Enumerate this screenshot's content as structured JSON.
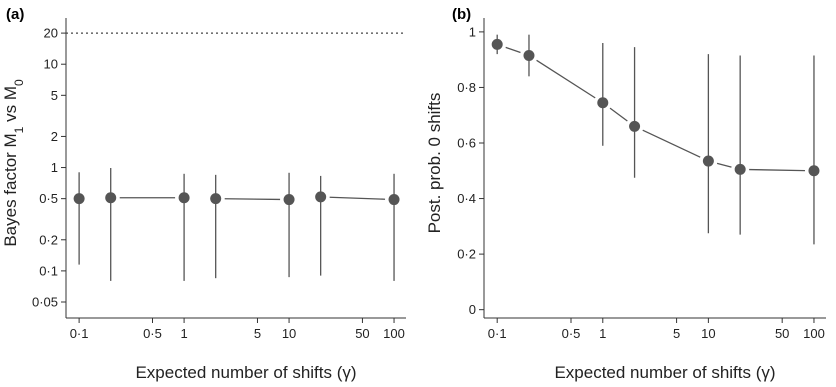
{
  "chart_data": [
    {
      "type": "scatter",
      "panel_label": "(a)",
      "xlabel": "Expected number of shifts (γ)",
      "ylabel": [
        "Bayes factor M",
        "1",
        " vs M",
        "0"
      ],
      "xscale": "log",
      "yscale": "log",
      "xlim": [
        0.075,
        130
      ],
      "ylim": [
        0.035,
        28
      ],
      "x_ticks": [
        0.1,
        0.5,
        1,
        5,
        10,
        50,
        100
      ],
      "x_tick_labels": [
        "0·1",
        "0·5",
        "1",
        "5",
        "10",
        "50",
        "100"
      ],
      "y_ticks": [
        0.05,
        0.1,
        0.2,
        0.5,
        1,
        2,
        5,
        10,
        20
      ],
      "y_tick_labels": [
        "0·05",
        "0·1",
        "0·2",
        "0·5",
        "1",
        "2",
        "5",
        "10",
        "20"
      ],
      "reference_line": 20,
      "points": [
        {
          "x": 0.1,
          "y": 0.5,
          "low": 0.115,
          "high": 0.9
        },
        {
          "x": 0.2,
          "y": 0.51,
          "low": 0.08,
          "high": 0.99
        },
        {
          "x": 1,
          "y": 0.51,
          "low": 0.08,
          "high": 0.87
        },
        {
          "x": 2,
          "y": 0.5,
          "low": 0.085,
          "high": 0.85
        },
        {
          "x": 10,
          "y": 0.49,
          "low": 0.087,
          "high": 0.89
        },
        {
          "x": 20,
          "y": 0.52,
          "low": 0.09,
          "high": 0.83
        },
        {
          "x": 100,
          "y": 0.49,
          "low": 0.08,
          "high": 0.87
        }
      ],
      "segments": [
        [
          1,
          2
        ],
        [
          3,
          4
        ],
        [
          5,
          6
        ]
      ]
    },
    {
      "type": "scatter",
      "panel_label": "(b)",
      "xlabel": "Expected number of shifts (γ)",
      "ylabel": "Post. prob. 0 shifts",
      "xscale": "log",
      "yscale": "linear",
      "xlim": [
        0.075,
        130
      ],
      "ylim": [
        -0.03,
        1.05
      ],
      "x_ticks": [
        0.1,
        0.5,
        1,
        5,
        10,
        50,
        100
      ],
      "x_tick_labels": [
        "0·1",
        "0·5",
        "1",
        "5",
        "10",
        "50",
        "100"
      ],
      "y_ticks": [
        0,
        0.2,
        0.4,
        0.6,
        0.8,
        1
      ],
      "y_tick_labels": [
        "0",
        "0·2",
        "0·4",
        "0·6",
        "0·8",
        "1"
      ],
      "points": [
        {
          "x": 0.1,
          "y": 0.955,
          "low": 0.92,
          "high": 0.99
        },
        {
          "x": 0.2,
          "y": 0.915,
          "low": 0.84,
          "high": 0.99
        },
        {
          "x": 1,
          "y": 0.745,
          "low": 0.59,
          "high": 0.96
        },
        {
          "x": 2,
          "y": 0.66,
          "low": 0.475,
          "high": 0.945
        },
        {
          "x": 10,
          "y": 0.535,
          "low": 0.275,
          "high": 0.92
        },
        {
          "x": 20,
          "y": 0.505,
          "low": 0.27,
          "high": 0.915
        },
        {
          "x": 100,
          "y": 0.5,
          "low": 0.235,
          "high": 0.915
        }
      ],
      "segments": [
        [
          0,
          1
        ],
        [
          1,
          2
        ],
        [
          2,
          3
        ],
        [
          3,
          4
        ],
        [
          4,
          5
        ],
        [
          5,
          6
        ]
      ]
    }
  ]
}
